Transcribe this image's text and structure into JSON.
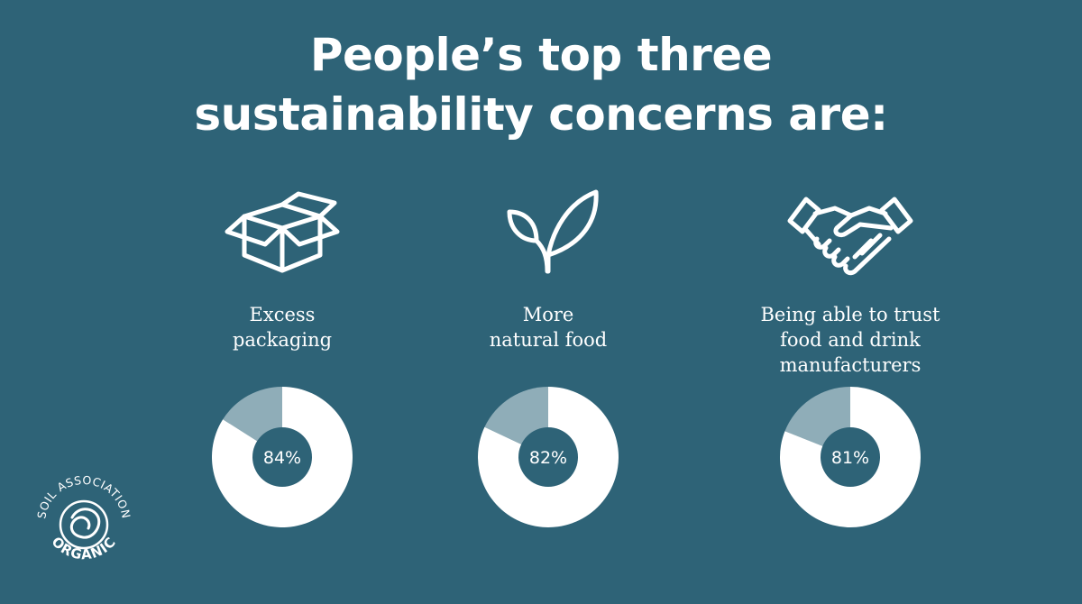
{
  "title": {
    "line1": "People’s top three",
    "line2": "sustainability concerns are:"
  },
  "colors": {
    "background": "#2e6377",
    "donut_fill": "#ffffff",
    "donut_remainder": "#8fadb8"
  },
  "concerns": [
    {
      "icon": "box-icon",
      "label_lines": [
        "Excess",
        "packaging"
      ],
      "percent_label": "84%"
    },
    {
      "icon": "leaf-icon",
      "label_lines": [
        "More",
        "natural food"
      ],
      "percent_label": "82%"
    },
    {
      "icon": "handshake-icon",
      "label_lines": [
        "Being able to trust",
        "food and drink",
        "manufacturers"
      ],
      "percent_label": "81%"
    }
  ],
  "logo": {
    "icon": "soil-association-organic-logo",
    "top_text": "SOIL ASSOCIATION",
    "bottom_text": "ORGANIC"
  },
  "chart_data": [
    {
      "type": "pie",
      "categories": [
        "Excess packaging",
        ""
      ],
      "values": [
        84,
        16
      ]
    },
    {
      "type": "pie",
      "categories": [
        "More natural food",
        ""
      ],
      "values": [
        82,
        18
      ]
    },
    {
      "type": "pie",
      "categories": [
        "Being able to trust food and drink manufacturers",
        ""
      ],
      "values": [
        81,
        19
      ]
    }
  ]
}
